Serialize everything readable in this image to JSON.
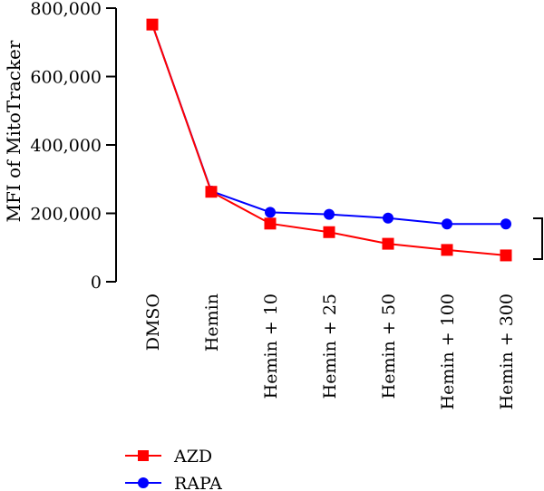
{
  "chart_data": {
    "type": "line",
    "categories": [
      "DMSO",
      "Hemin",
      "Hemin + 10",
      "Hemin + 25",
      "Hemin + 50",
      "Hemin + 100",
      "Hemin + 300"
    ],
    "series": [
      {
        "name": "AZD",
        "color": "#ff0000",
        "marker": "square",
        "values": [
          752000,
          263000,
          170000,
          145000,
          111000,
          93000,
          77000
        ]
      },
      {
        "name": "RAPA",
        "color": "#0000ff",
        "marker": "circle",
        "values": [
          752000,
          265000,
          203000,
          197000,
          186000,
          169000,
          169000
        ]
      }
    ],
    "ylabel": "MFI of MitoTracker",
    "xlabel": "",
    "ylim": [
      0,
      800000
    ],
    "yticks": [
      0,
      200000,
      400000,
      600000,
      800000
    ],
    "ytick_labels": [
      "0",
      "200,000",
      "400,000",
      "600,000",
      "800,000"
    ],
    "grid": false,
    "legend": "bottom-left"
  }
}
